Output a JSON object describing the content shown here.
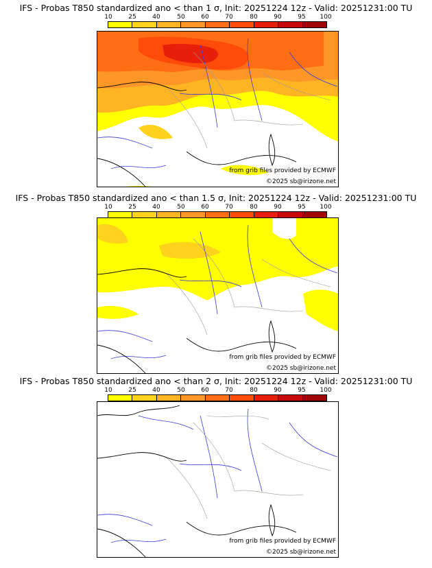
{
  "colors": {
    "scale": [
      "#ffff00",
      "#ffd21e",
      "#ffb423",
      "#ff9628",
      "#ff6e14",
      "#ff4b0a",
      "#e61e0a",
      "#c80a0a",
      "#a00505",
      "#6e0000"
    ],
    "rivers": "#3a3ad6",
    "borders": "#999999",
    "coast": "#000000"
  },
  "colorbar": {
    "ticks": [
      "10",
      "25",
      "40",
      "50",
      "60",
      "70",
      "80",
      "90",
      "95",
      "100"
    ]
  },
  "panels": [
    {
      "title": "IFS - Probas T850  standardized ano < than 1 σ, Init: 20251224 12z - Valid: 20251231:00 TU",
      "credit_source": "from grib files provided by ECMWF",
      "credit_copyright": "©2025 sb@irizone.net"
    },
    {
      "title": "IFS - Probas T850  standardized ano < than 1.5 σ, Init: 20251224 12z - Valid: 20251231:00 TU",
      "credit_source": "from grib files provided by ECMWF",
      "credit_copyright": "©2025 sb@irizone.net"
    },
    {
      "title": "IFS - Probas T850  standardized ano < than 2 σ, Init: 20251224 12z - Valid: 20251231:00 TU",
      "credit_source": "from grib files provided by ECMWF",
      "credit_copyright": "©2025 sb@irizone.net"
    }
  ]
}
